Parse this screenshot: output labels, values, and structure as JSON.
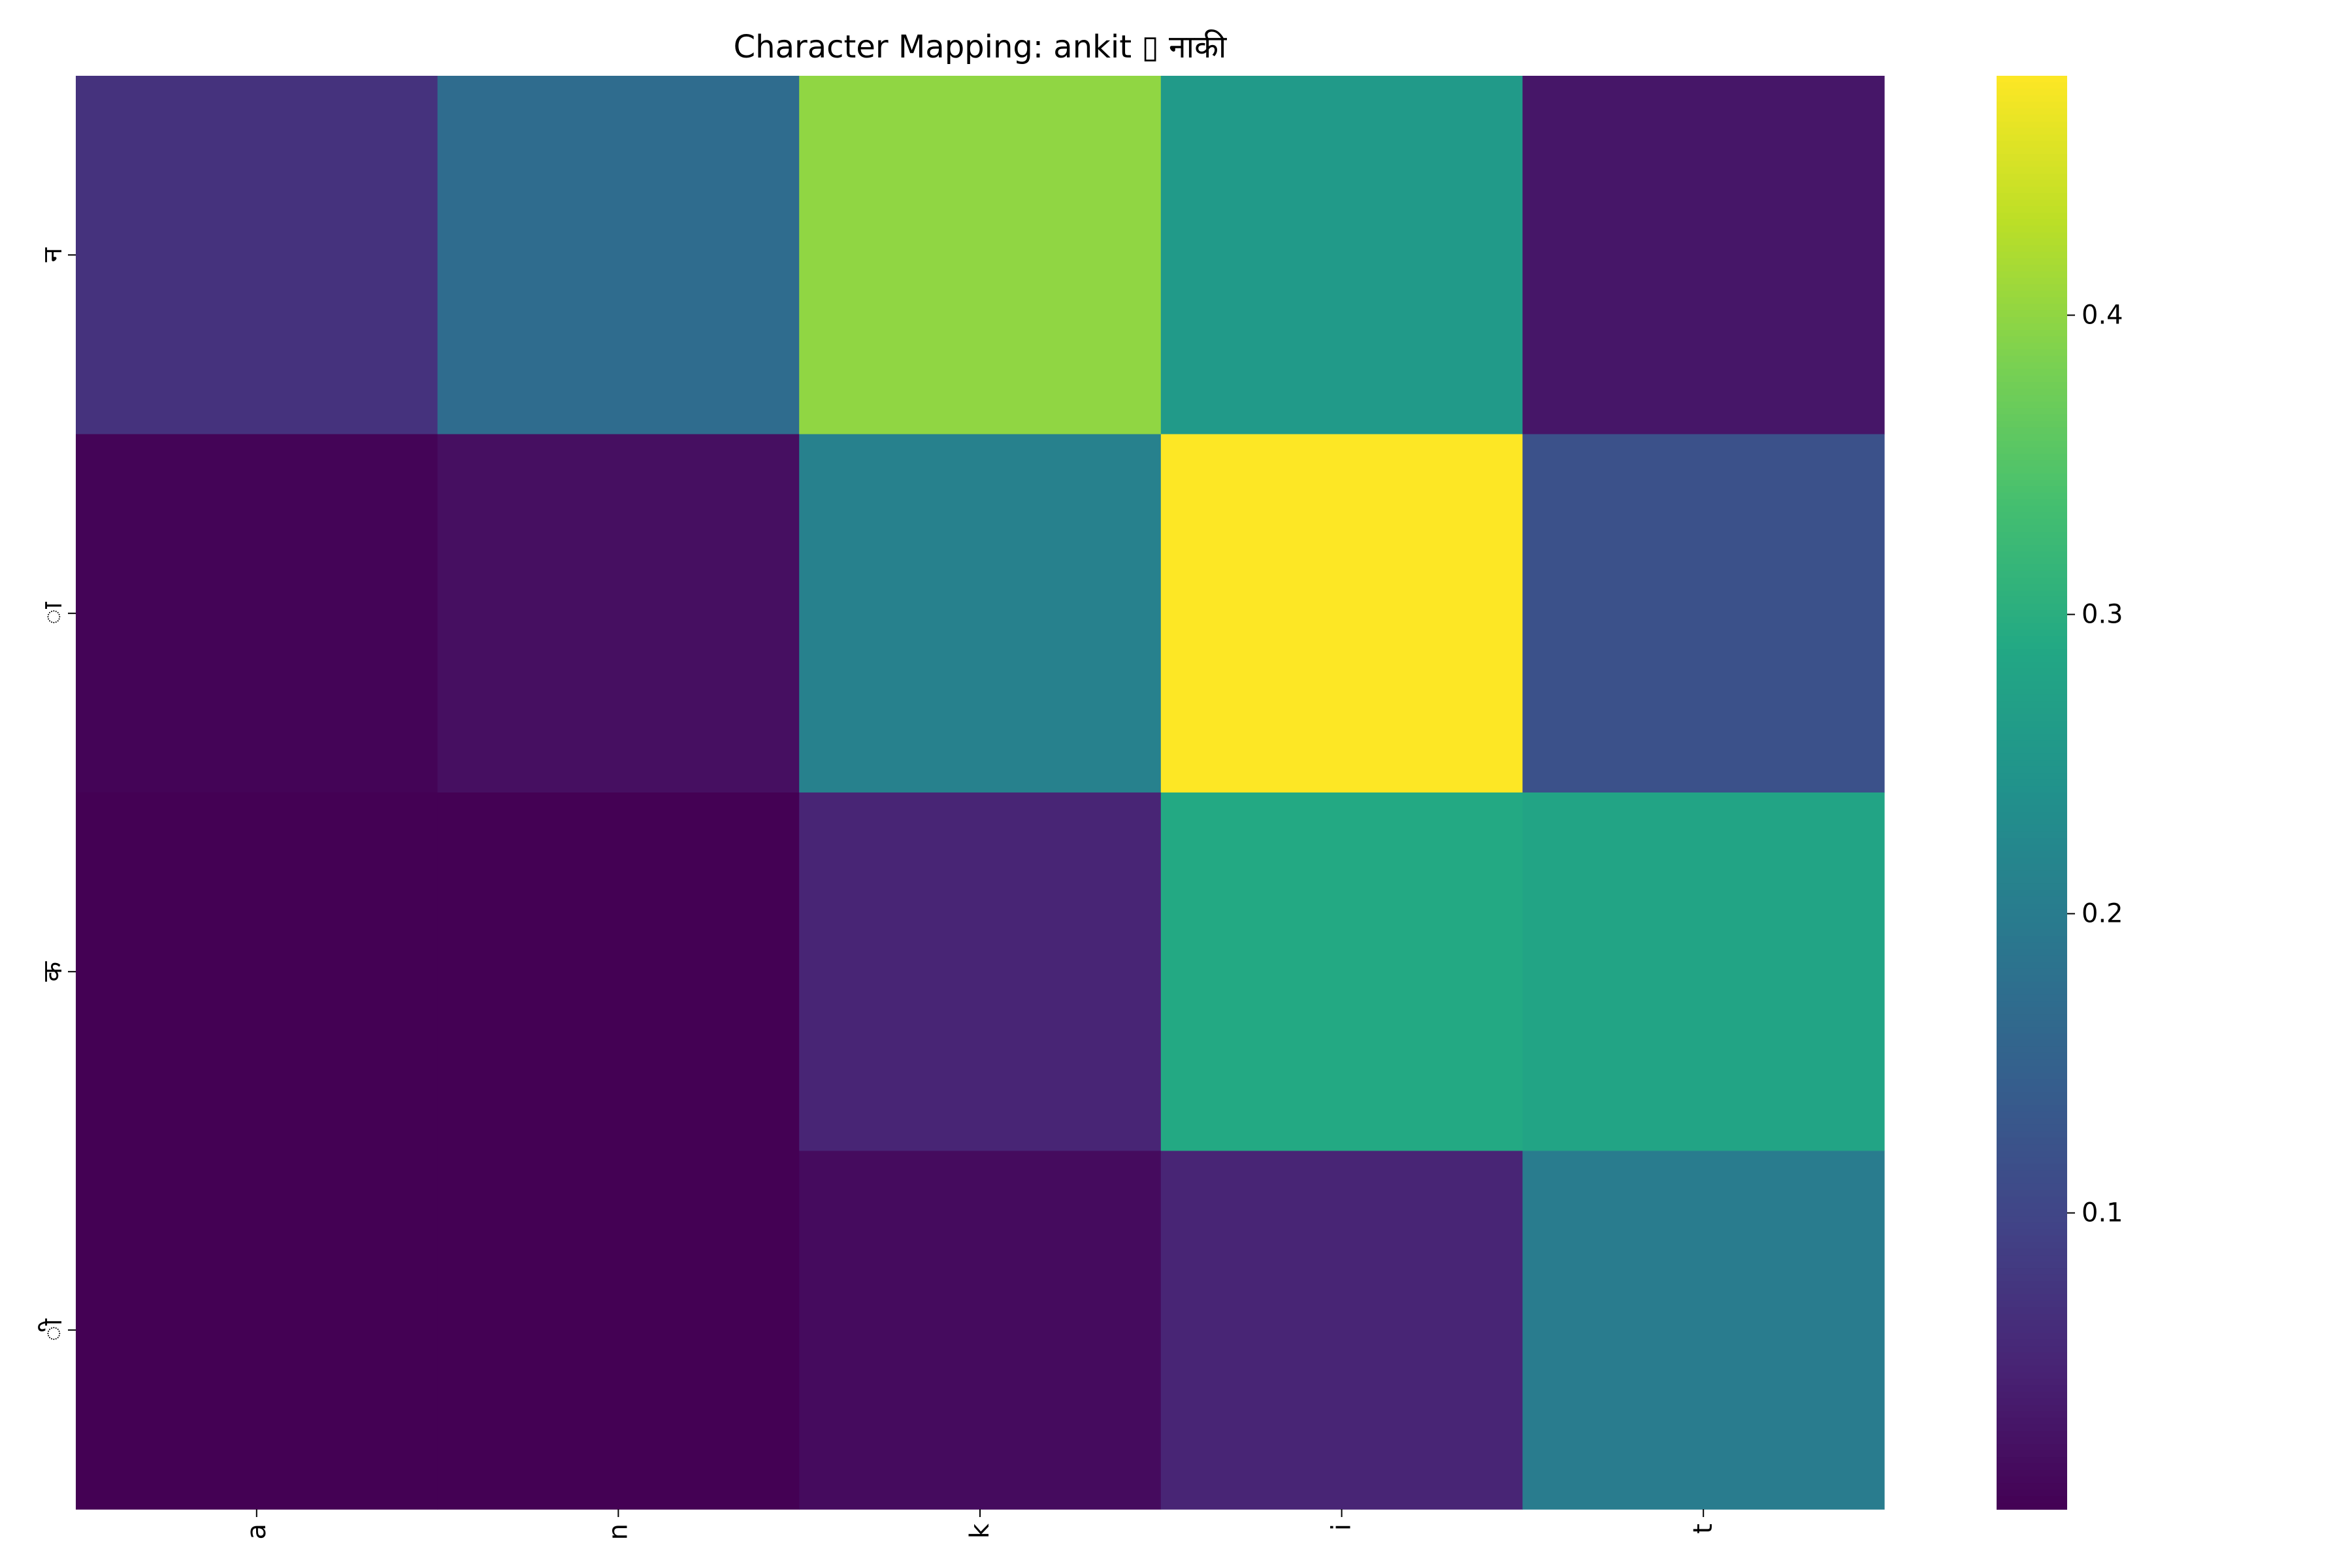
{
  "chart_data": {
    "type": "heatmap",
    "title": "Character Mapping: ankit ▯ नाकी",
    "xlabel": "",
    "ylabel": "",
    "x_categories": [
      "a",
      "n",
      "k",
      "i",
      "t"
    ],
    "y_categories": [
      "न",
      "ा",
      "क",
      "ी"
    ],
    "values": [
      [
        0.07,
        0.17,
        0.4,
        0.26,
        0.03
      ],
      [
        0.005,
        0.02,
        0.21,
        0.48,
        0.12
      ],
      [
        0.001,
        0.001,
        0.05,
        0.29,
        0.28
      ],
      [
        0.001,
        0.001,
        0.015,
        0.05,
        0.2
      ]
    ],
    "colorbar": {
      "colormap": "viridis",
      "range": [
        0.001,
        0.48
      ],
      "ticks": [
        0.1,
        0.2,
        0.3,
        0.4
      ],
      "tick_labels": [
        "0.1",
        "0.2",
        "0.3",
        "0.4"
      ]
    },
    "grid": false
  }
}
